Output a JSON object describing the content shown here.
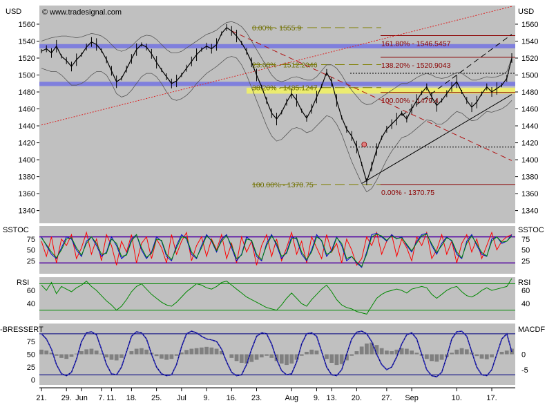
{
  "chart_data": {
    "type": "line",
    "source_label": "© www.tradesignal.com",
    "currency": "USD",
    "x_tick_labels": [
      "21.",
      "29.",
      "Jun",
      "7.",
      "11.",
      "18.",
      "25.",
      "Jul",
      "9.",
      "16.",
      "23.",
      "Aug",
      "9.",
      "13.",
      "20.",
      "27.",
      "Sep",
      "10.",
      "17."
    ],
    "price_panel": {
      "ylabel": "USD",
      "ylim": [
        1325,
        1582
      ],
      "yticks": [
        1340,
        1360,
        1380,
        1400,
        1420,
        1440,
        1460,
        1480,
        1500,
        1520,
        1540,
        1560
      ],
      "close": [
        1528,
        1531,
        1526,
        1534,
        1522,
        1517,
        1510,
        1518,
        1524,
        1533,
        1539,
        1536,
        1529,
        1518,
        1505,
        1492,
        1496,
        1507,
        1519,
        1530,
        1536,
        1533,
        1525,
        1515,
        1506,
        1498,
        1490,
        1493,
        1500,
        1508,
        1516,
        1524,
        1530,
        1534,
        1531,
        1536,
        1549,
        1556,
        1552,
        1546,
        1538,
        1528,
        1515,
        1500,
        1486,
        1470,
        1455,
        1448,
        1456,
        1468,
        1478,
        1470,
        1458,
        1449,
        1460,
        1474,
        1487,
        1503,
        1492,
        1470,
        1450,
        1436,
        1428,
        1415,
        1395,
        1374,
        1392,
        1412,
        1426,
        1436,
        1442,
        1448,
        1455,
        1448,
        1460,
        1470,
        1479,
        1486,
        1474,
        1464,
        1470,
        1478,
        1486,
        1492,
        1480,
        1470,
        1462,
        1468,
        1478,
        1486,
        1480,
        1484,
        1488,
        1496,
        1520
      ],
      "bollinger_upper": [
        1540,
        1542,
        1544,
        1545,
        1546,
        1546,
        1545,
        1544,
        1545,
        1547,
        1549,
        1548,
        1546,
        1542,
        1536,
        1530,
        1528,
        1530,
        1534,
        1540,
        1545,
        1547,
        1546,
        1542,
        1536,
        1530,
        1526,
        1526,
        1528,
        1532,
        1536,
        1540,
        1544,
        1548,
        1550,
        1553,
        1558,
        1562,
        1563,
        1561,
        1557,
        1550,
        1540,
        1530,
        1520,
        1510,
        1500,
        1494,
        1492,
        1494,
        1497,
        1498,
        1496,
        1494,
        1494,
        1498,
        1505,
        1512,
        1512,
        1508,
        1500,
        1490,
        1482,
        1475,
        1468,
        1465,
        1466,
        1470,
        1474,
        1478,
        1482,
        1486,
        1490,
        1490,
        1493,
        1497,
        1500,
        1502,
        1500,
        1497,
        1496,
        1497,
        1500,
        1503,
        1502,
        1498,
        1494,
        1494,
        1496,
        1498,
        1497,
        1498,
        1500,
        1504,
        1520
      ],
      "bollinger_lower": [
        1508,
        1506,
        1504,
        1504,
        1500,
        1494,
        1488,
        1488,
        1490,
        1494,
        1500,
        1504,
        1504,
        1500,
        1490,
        1478,
        1474,
        1476,
        1482,
        1490,
        1498,
        1502,
        1502,
        1498,
        1490,
        1480,
        1472,
        1470,
        1472,
        1476,
        1482,
        1490,
        1496,
        1502,
        1506,
        1510,
        1515,
        1520,
        1522,
        1520,
        1512,
        1500,
        1485,
        1470,
        1455,
        1440,
        1428,
        1422,
        1424,
        1430,
        1436,
        1438,
        1436,
        1432,
        1434,
        1440,
        1446,
        1452,
        1450,
        1442,
        1430,
        1414,
        1398,
        1385,
        1372,
        1362,
        1366,
        1376,
        1388,
        1400,
        1410,
        1418,
        1426,
        1428,
        1432,
        1437,
        1442,
        1447,
        1446,
        1442,
        1442,
        1446,
        1452,
        1457,
        1455,
        1450,
        1446,
        1447,
        1452,
        1457,
        1456,
        1458,
        1460,
        1464,
        1470
      ],
      "resistance_bands": [
        {
          "center": 1534,
          "half_width": 2.5,
          "color": "#7878e0"
        },
        {
          "center": 1489.5,
          "half_width": 2.5,
          "color": "#7878e0"
        }
      ],
      "yellow_band": {
        "low": 1478,
        "high": 1485,
        "color": "#ecec70"
      },
      "fibonacci_retracement": [
        {
          "label": "0.00% - 1555.9",
          "value": 1555.9
        },
        {
          "label": "23.60% - 1512.2046",
          "value": 1512.2046
        },
        {
          "label": "38.20% - 1485.1247",
          "value": 1485.1247
        },
        {
          "label": "100.00% - 1370.75",
          "value": 1370.75
        }
      ],
      "fibonacci_extension": [
        {
          "label": "161.80% - 1546.5457",
          "value": 1546.5457
        },
        {
          "label": "138.20% - 1520.9043",
          "value": 1520.9043
        },
        {
          "label": "100.00% - 1479.4",
          "value": 1479.4
        },
        {
          "label": "0.00% - 1370.75",
          "value": 1370.75
        }
      ],
      "dotted_levels": [
        1502,
        1415
      ],
      "trend_lines": [
        {
          "name": "long-uptrend",
          "style": "dotted",
          "color": "#dd2020",
          "x0": 0,
          "y0": 1441,
          "x1": 94,
          "y1": 1581
        },
        {
          "name": "downtrend",
          "style": "dashed",
          "color": "#b01010",
          "x0": 38,
          "y0": 1552,
          "x1": 94,
          "y1": 1399
        },
        {
          "name": "channel-lower",
          "style": "solid",
          "color": "#000000",
          "x0": 64,
          "y0": 1372,
          "x1": 94,
          "y1": 1477
        },
        {
          "name": "channel-upper",
          "style": "dashed",
          "color": "#000000",
          "x0": 72,
          "y0": 1452,
          "x1": 94,
          "y1": 1548
        }
      ],
      "marker": {
        "x": 64.5,
        "value": 1418,
        "color": "#e08080"
      }
    },
    "sstoc_panel": {
      "label": "SSTOC",
      "ylim": [
        0,
        100
      ],
      "yticks": [
        25,
        50,
        75
      ],
      "levels": [
        20,
        80
      ],
      "series": [
        {
          "name": "fast",
          "color": "#ff0000",
          "values": [
            70,
            35,
            80,
            20,
            75,
            60,
            85,
            30,
            55,
            90,
            40,
            75,
            25,
            85,
            60,
            15,
            70,
            45,
            85,
            20,
            65,
            80,
            30,
            75,
            55,
            20,
            85,
            40,
            70,
            90,
            25,
            60,
            80,
            35,
            75,
            50,
            85,
            30,
            65,
            20,
            80,
            45,
            70,
            15,
            60,
            85,
            35,
            75,
            25,
            55,
            90,
            40,
            70,
            20,
            80,
            55,
            30,
            85,
            45,
            65,
            20,
            75,
            50,
            15,
            30,
            80,
            60,
            90,
            40,
            70,
            85,
            35,
            75,
            55,
            25,
            80,
            60,
            90,
            30,
            50,
            85,
            40,
            70,
            20,
            65,
            85,
            45,
            75,
            30,
            60,
            90,
            50,
            70,
            80,
            85
          ]
        },
        {
          "name": "slow",
          "color": "#0000cc",
          "values": [
            80,
            60,
            40,
            30,
            55,
            80,
            75,
            50,
            35,
            70,
            80,
            60,
            35,
            45,
            80,
            60,
            30,
            40,
            75,
            85,
            50,
            30,
            45,
            80,
            70,
            35,
            25,
            60,
            85,
            75,
            40,
            30,
            60,
            85,
            70,
            45,
            75,
            85,
            55,
            25,
            40,
            80,
            70,
            35,
            25,
            65,
            85,
            60,
            30,
            45,
            80,
            75,
            40,
            25,
            50,
            85,
            70,
            35,
            50,
            80,
            60,
            25,
            35,
            20,
            10,
            45,
            85,
            88,
            80,
            70,
            85,
            75,
            80,
            60,
            45,
            70,
            85,
            88,
            60,
            40,
            65,
            80,
            70,
            40,
            30,
            70,
            85,
            60,
            40,
            35,
            75,
            80,
            65,
            70,
            85
          ]
        },
        {
          "name": "signal",
          "color": "#008800",
          "values": [
            78,
            62,
            45,
            32,
            50,
            75,
            78,
            55,
            38,
            65,
            80,
            65,
            40,
            42,
            75,
            65,
            35,
            38,
            70,
            85,
            55,
            33,
            42,
            75,
            72,
            40,
            28,
            55,
            80,
            78,
            45,
            32,
            55,
            82,
            72,
            48,
            70,
            83,
            60,
            30,
            38,
            75,
            72,
            40,
            28,
            60,
            82,
            65,
            35,
            42,
            75,
            78,
            45,
            28,
            45,
            80,
            72,
            40,
            45,
            78,
            65,
            30,
            35,
            22,
            12,
            40,
            80,
            86,
            82,
            72,
            82,
            76,
            78,
            63,
            48,
            66,
            82,
            86,
            64,
            44,
            60,
            78,
            72,
            45,
            32,
            65,
            82,
            64,
            44,
            36,
            70,
            80,
            68,
            70,
            82
          ]
        }
      ]
    },
    "rsi_panel": {
      "label": "RSI",
      "ylim": [
        15,
        80
      ],
      "yticks": [
        40,
        60
      ],
      "levels": [
        30,
        70
      ],
      "values": [
        68,
        60,
        72,
        55,
        66,
        62,
        58,
        64,
        68,
        74,
        66,
        60,
        52,
        44,
        38,
        30,
        36,
        46,
        58,
        66,
        70,
        62,
        54,
        48,
        42,
        38,
        36,
        42,
        50,
        58,
        64,
        70,
        68,
        64,
        62,
        66,
        72,
        74,
        68,
        62,
        56,
        50,
        46,
        42,
        38,
        34,
        32,
        30,
        38,
        48,
        56,
        48,
        40,
        36,
        46,
        54,
        62,
        68,
        58,
        46,
        38,
        34,
        32,
        28,
        26,
        24,
        36,
        48,
        54,
        58,
        60,
        62,
        60,
        56,
        62,
        64,
        66,
        64,
        54,
        48,
        54,
        60,
        64,
        66,
        58,
        52,
        50,
        54,
        60,
        64,
        60,
        62,
        64,
        66,
        78
      ]
    },
    "bressert_panel": {
      "label_left": "-BRESSERT",
      "label_right": "MACDF",
      "ylim": [
        -10,
        110
      ],
      "yticks_left": [
        0,
        25,
        50,
        75
      ],
      "levels": [
        10,
        90
      ],
      "macd_ylim": [
        -10,
        10
      ],
      "yticks_right": [
        0,
        -5
      ],
      "histogram_color": "#808080",
      "bressert_values": [
        90,
        80,
        60,
        30,
        12,
        8,
        15,
        40,
        75,
        92,
        94,
        88,
        60,
        30,
        12,
        10,
        25,
        55,
        85,
        94,
        92,
        80,
        50,
        25,
        12,
        8,
        10,
        30,
        65,
        90,
        95,
        92,
        85,
        80,
        78,
        75,
        60,
        35,
        15,
        8,
        10,
        30,
        60,
        85,
        92,
        90,
        70,
        40,
        18,
        10,
        12,
        35,
        70,
        90,
        92,
        85,
        55,
        25,
        10,
        8,
        20,
        50,
        80,
        93,
        95,
        90,
        75,
        50,
        30,
        20,
        25,
        45,
        70,
        88,
        92,
        80,
        50,
        20,
        8,
        6,
        15,
        45,
        80,
        94,
        95,
        85,
        55,
        25,
        10,
        8,
        20,
        50,
        80,
        90,
        55
      ],
      "macd_histogram": [
        1.5,
        1.2,
        0.5,
        -0.5,
        -1.2,
        -1.5,
        -0.8,
        0.2,
        1.0,
        1.6,
        1.8,
        1.2,
        0.2,
        -1.0,
        -1.8,
        -2.0,
        -1.2,
        0.0,
        1.0,
        1.8,
        2.0,
        1.5,
        0.5,
        -0.6,
        -1.4,
        -1.8,
        -1.5,
        -0.5,
        0.6,
        1.4,
        1.8,
        2.0,
        2.2,
        2.4,
        2.2,
        1.8,
        1.0,
        0.0,
        -1.2,
        -2.2,
        -2.8,
        -3.0,
        -2.5,
        -1.8,
        -1.0,
        -0.5,
        -1.2,
        -2.2,
        -3.0,
        -3.5,
        -3.0,
        -1.8,
        -0.5,
        0.8,
        1.5,
        1.2,
        0.0,
        -1.5,
        -2.8,
        -3.5,
        -3.2,
        -2.0,
        -0.5,
        1.0,
        2.5,
        3.5,
        3.8,
        3.0,
        2.0,
        1.2,
        1.0,
        1.5,
        2.0,
        1.8,
        1.2,
        0.5,
        -0.5,
        -1.5,
        -2.2,
        -2.4,
        -1.8,
        -0.8,
        0.5,
        1.5,
        2.0,
        1.6,
        0.6,
        -0.6,
        -1.4,
        -1.6,
        -1.0,
        0.0,
        0.8,
        1.2,
        1.8
      ]
    }
  }
}
